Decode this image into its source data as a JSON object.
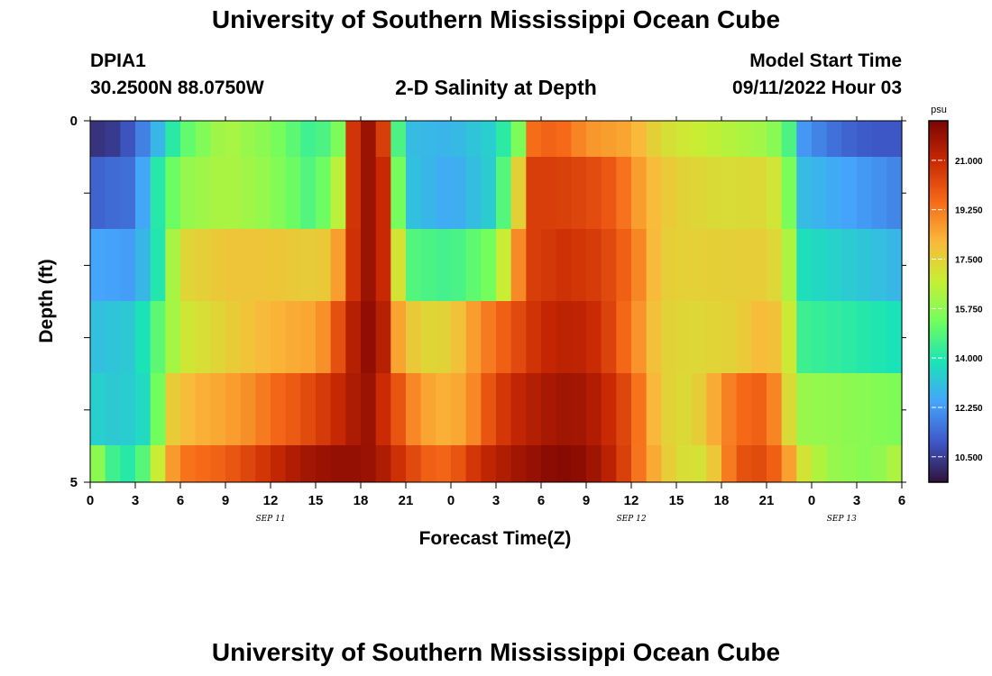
{
  "page": {
    "title_top": "University of Southern Mississippi Ocean Cube",
    "title_bottom": "University of Southern Mississippi Ocean Cube",
    "station_id": "DPIA1",
    "coordinates": "30.2500N  88.0750W",
    "model_start_label": "Model Start Time",
    "model_start_value": "09/11/2022 Hour 03"
  },
  "colors": {
    "scale": [
      "#30123b",
      "#3e58c8",
      "#45a4fc",
      "#1ae4b6",
      "#70fe5f",
      "#c7ef34",
      "#fab83a",
      "#f56918",
      "#c92903",
      "#7a0403"
    ]
  },
  "chart_data": {
    "type": "heatmap",
    "title": "2-D Salinity at Depth",
    "xlabel": "Forecast Time(Z)",
    "ylabel": "Depth (ft)",
    "units": "psu",
    "x_range": [
      0,
      54
    ],
    "x_step_hours": 1,
    "x_ticks": [
      {
        "hour": 0,
        "label": "0"
      },
      {
        "hour": 3,
        "label": "3"
      },
      {
        "hour": 6,
        "label": "6"
      },
      {
        "hour": 9,
        "label": "9"
      },
      {
        "hour": 12,
        "label": "12"
      },
      {
        "hour": 15,
        "label": "15"
      },
      {
        "hour": 18,
        "label": "18"
      },
      {
        "hour": 21,
        "label": "21"
      },
      {
        "hour": 24,
        "label": "0"
      },
      {
        "hour": 27,
        "label": "3"
      },
      {
        "hour": 30,
        "label": "6"
      },
      {
        "hour": 33,
        "label": "9"
      },
      {
        "hour": 36,
        "label": "12"
      },
      {
        "hour": 39,
        "label": "15"
      },
      {
        "hour": 42,
        "label": "18"
      },
      {
        "hour": 45,
        "label": "21"
      },
      {
        "hour": 48,
        "label": "0"
      },
      {
        "hour": 51,
        "label": "3"
      },
      {
        "hour": 54,
        "label": "6"
      }
    ],
    "date_labels": [
      {
        "hour": 12,
        "label": "SEP 11"
      },
      {
        "hour": 36,
        "label": "SEP 12"
      },
      {
        "hour": 50,
        "label": "SEP 13"
      }
    ],
    "y_ticks": [
      {
        "depth": 0,
        "label": "0"
      },
      {
        "depth": 5,
        "label": "5"
      }
    ],
    "y_range": [
      0,
      5
    ],
    "depth_levels": [
      "0-0.5",
      "0.5-1.5",
      "1.5-2.5",
      "2.5-3.5",
      "3.5-4.5",
      "4.5-5"
    ],
    "colorbar": {
      "min": 9.6,
      "max": 22.4,
      "ticks": [
        {
          "value": 21.0,
          "label": "21.000"
        },
        {
          "value": 19.25,
          "label": "19.250"
        },
        {
          "value": 17.5,
          "label": "17.500"
        },
        {
          "value": 15.75,
          "label": "15.750"
        },
        {
          "value": 14.0,
          "label": "14.000"
        },
        {
          "value": 12.25,
          "label": "12.250"
        },
        {
          "value": 10.5,
          "label": "10.500"
        }
      ]
    },
    "rows": [
      {
        "depth_top": 0,
        "depth_bottom": 0.5,
        "anchors": [
          [
            0,
            10.2
          ],
          [
            2,
            10.5
          ],
          [
            4,
            12.2
          ],
          [
            6,
            14.8
          ],
          [
            9,
            16.3
          ],
          [
            12,
            15.6
          ],
          [
            15,
            14.3
          ],
          [
            16.5,
            15.5
          ],
          [
            17.3,
            20.5
          ],
          [
            18.5,
            21.8
          ],
          [
            19.5,
            20.5
          ],
          [
            20,
            17.5
          ],
          [
            20.8,
            13
          ],
          [
            24,
            12.8
          ],
          [
            27,
            13.5
          ],
          [
            28.5,
            15.5
          ],
          [
            29.5,
            19.5
          ],
          [
            31,
            19.8
          ],
          [
            33,
            18.8
          ],
          [
            36,
            18.4
          ],
          [
            38,
            17.2
          ],
          [
            40,
            16.8
          ],
          [
            42,
            16.5
          ],
          [
            45,
            16
          ],
          [
            46.3,
            15.2
          ],
          [
            47.5,
            12.2
          ],
          [
            50,
            11.3
          ],
          [
            52,
            11
          ],
          [
            54,
            11
          ]
        ]
      },
      {
        "depth_top": 0.5,
        "depth_bottom": 1.5,
        "anchors": [
          [
            0,
            11.2
          ],
          [
            3,
            11.5
          ],
          [
            4,
            13.5
          ],
          [
            6,
            15.8
          ],
          [
            9,
            16.3
          ],
          [
            12,
            15.8
          ],
          [
            15,
            14.6
          ],
          [
            16.5,
            16.5
          ],
          [
            17.3,
            20.5
          ],
          [
            18.5,
            21.8
          ],
          [
            19.5,
            21
          ],
          [
            20,
            17.5
          ],
          [
            21,
            13.2
          ],
          [
            24,
            12.5
          ],
          [
            27,
            13.5
          ],
          [
            28.5,
            17.5
          ],
          [
            29.5,
            20.5
          ],
          [
            31,
            20.5
          ],
          [
            33,
            20.3
          ],
          [
            35,
            19.8
          ],
          [
            37,
            18.2
          ],
          [
            39,
            17.5
          ],
          [
            42,
            17.2
          ],
          [
            45,
            17.3
          ],
          [
            46.2,
            16.5
          ],
          [
            47.2,
            13
          ],
          [
            54,
            11.8
          ]
        ]
      },
      {
        "depth_top": 1.5,
        "depth_bottom": 2.5,
        "anchors": [
          [
            0,
            12.5
          ],
          [
            3,
            12.3
          ],
          [
            4.5,
            14
          ],
          [
            6,
            17.3
          ],
          [
            9,
            17.8
          ],
          [
            12,
            17.8
          ],
          [
            15,
            17.6
          ],
          [
            16.2,
            17.8
          ],
          [
            17.2,
            20.5
          ],
          [
            18.5,
            21.8
          ],
          [
            19.5,
            21
          ],
          [
            20.3,
            17.5
          ],
          [
            21.5,
            14.8
          ],
          [
            24,
            14.5
          ],
          [
            27,
            15.5
          ],
          [
            28.2,
            18.5
          ],
          [
            29.5,
            20.5
          ],
          [
            31.5,
            20.8
          ],
          [
            34,
            20.5
          ],
          [
            36,
            19.5
          ],
          [
            38,
            17.6
          ],
          [
            40,
            17.5
          ],
          [
            45,
            17.6
          ],
          [
            46.3,
            17
          ],
          [
            47.2,
            13.8
          ],
          [
            54,
            12.8
          ]
        ]
      },
      {
        "depth_top": 2.5,
        "depth_bottom": 3.5,
        "anchors": [
          [
            0,
            13
          ],
          [
            3,
            13.3
          ],
          [
            5,
            15.5
          ],
          [
            6,
            16.8
          ],
          [
            9,
            17.5
          ],
          [
            12,
            18.2
          ],
          [
            15,
            18.5
          ],
          [
            16,
            19.2
          ],
          [
            17,
            21
          ],
          [
            18.5,
            22
          ],
          [
            19.5,
            21.3
          ],
          [
            20.5,
            18.5
          ],
          [
            22,
            17.3
          ],
          [
            24,
            17.5
          ],
          [
            26,
            19
          ],
          [
            28,
            20
          ],
          [
            30,
            21
          ],
          [
            32,
            21.3
          ],
          [
            34,
            20.8
          ],
          [
            36,
            19.2
          ],
          [
            38,
            17.5
          ],
          [
            40,
            17.3
          ],
          [
            43,
            17.5
          ],
          [
            45,
            18.2
          ],
          [
            46.3,
            17.5
          ],
          [
            47.2,
            14.5
          ],
          [
            54,
            13.8
          ]
        ]
      },
      {
        "depth_top": 3.5,
        "depth_bottom": 4.5,
        "anchors": [
          [
            0,
            13.5
          ],
          [
            2,
            13.2
          ],
          [
            4,
            13.8
          ],
          [
            5.2,
            17.5
          ],
          [
            7,
            18.2
          ],
          [
            9,
            18.5
          ],
          [
            11,
            19
          ],
          [
            12,
            19.5
          ],
          [
            14,
            20
          ],
          [
            16,
            20.8
          ],
          [
            17.5,
            21.5
          ],
          [
            18.5,
            21.8
          ],
          [
            20,
            20.5
          ],
          [
            21.5,
            19
          ],
          [
            23,
            18.2
          ],
          [
            25,
            18.5
          ],
          [
            26.5,
            20
          ],
          [
            28,
            21
          ],
          [
            30,
            21.5
          ],
          [
            32,
            21.8
          ],
          [
            34,
            21.3
          ],
          [
            36,
            20
          ],
          [
            38,
            17.5
          ],
          [
            40,
            17.2
          ],
          [
            43,
            19.5
          ],
          [
            45,
            19.8
          ],
          [
            46.2,
            18
          ],
          [
            47,
            16
          ],
          [
            54,
            15.5
          ]
        ]
      },
      {
        "depth_top": 4.5,
        "depth_bottom": 5,
        "anchors": [
          [
            0,
            16.5
          ],
          [
            1,
            15
          ],
          [
            2,
            14
          ],
          [
            3,
            14.2
          ],
          [
            4,
            15.5
          ],
          [
            5,
            18
          ],
          [
            6,
            19.3
          ],
          [
            9,
            19.8
          ],
          [
            11,
            20.5
          ],
          [
            13,
            21.3
          ],
          [
            15,
            21.8
          ],
          [
            17,
            22
          ],
          [
            19,
            21.8
          ],
          [
            21,
            20.5
          ],
          [
            23,
            19.5
          ],
          [
            24.5,
            20
          ],
          [
            26,
            21
          ],
          [
            28,
            21.6
          ],
          [
            31,
            22.2
          ],
          [
            33,
            22
          ],
          [
            35,
            21
          ],
          [
            37,
            18.8
          ],
          [
            39,
            17.2
          ],
          [
            41,
            17
          ],
          [
            43,
            20
          ],
          [
            45,
            20.3
          ],
          [
            46.2,
            19
          ],
          [
            47.5,
            17
          ],
          [
            49,
            16
          ],
          [
            52,
            15.6
          ],
          [
            54,
            16.5
          ]
        ]
      }
    ]
  }
}
